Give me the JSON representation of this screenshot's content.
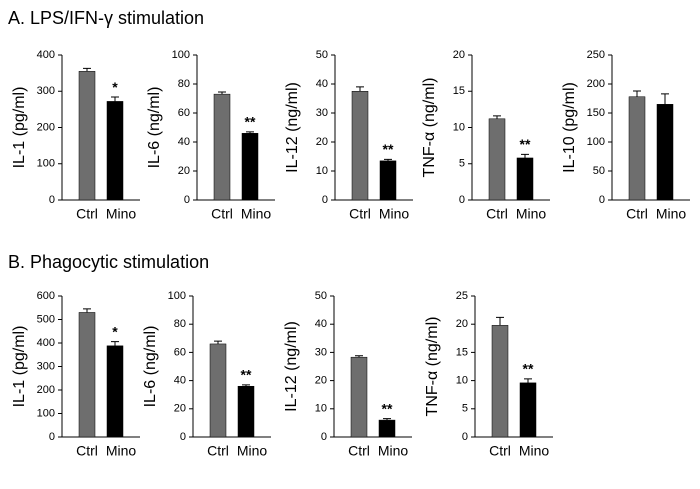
{
  "sections": [
    {
      "title": "A. LPS/IFN-γ stimulation"
    },
    {
      "title": "B. Phagocytic stimulation"
    }
  ],
  "chart_data": [
    {
      "type": "bar",
      "ylabel": "IL-1 (pg/ml)",
      "categories": [
        "Ctrl",
        "Mino"
      ],
      "values": [
        355,
        272
      ],
      "errors": [
        8,
        12
      ],
      "annotations": [
        null,
        "*"
      ],
      "colors": [
        "#6e6e6e",
        "#000000"
      ],
      "ylim": [
        0,
        400
      ],
      "yticks": [
        0,
        100,
        200,
        300,
        400
      ]
    },
    {
      "type": "bar",
      "ylabel": "IL-6 (ng/ml)",
      "categories": [
        "Ctrl",
        "Mino"
      ],
      "values": [
        73,
        46
      ],
      "errors": [
        1.5,
        1
      ],
      "annotations": [
        null,
        "**"
      ],
      "colors": [
        "#6e6e6e",
        "#000000"
      ],
      "ylim": [
        0,
        100
      ],
      "yticks": [
        0,
        20,
        40,
        60,
        80,
        100
      ]
    },
    {
      "type": "bar",
      "ylabel": "IL-12 (ng/ml)",
      "categories": [
        "Ctrl",
        "Mino"
      ],
      "values": [
        37.5,
        13.5
      ],
      "errors": [
        1.5,
        0.5
      ],
      "annotations": [
        null,
        "**"
      ],
      "colors": [
        "#6e6e6e",
        "#000000"
      ],
      "ylim": [
        0,
        50
      ],
      "yticks": [
        0,
        10,
        20,
        30,
        40,
        50
      ]
    },
    {
      "type": "bar",
      "ylabel": "TNF-α (ng/ml)",
      "categories": [
        "Ctrl",
        "Mino"
      ],
      "values": [
        11.2,
        5.8
      ],
      "errors": [
        0.4,
        0.5
      ],
      "annotations": [
        null,
        "**"
      ],
      "colors": [
        "#6e6e6e",
        "#000000"
      ],
      "ylim": [
        0,
        20
      ],
      "yticks": [
        0,
        5,
        10,
        15,
        20
      ]
    },
    {
      "type": "bar",
      "ylabel": "IL-10 (pg/ml)",
      "categories": [
        "Ctrl",
        "Mino"
      ],
      "values": [
        178,
        165
      ],
      "errors": [
        10,
        18
      ],
      "colors": [
        "#6e6e6e",
        "#000000"
      ],
      "ylim": [
        0,
        250
      ],
      "yticks": [
        0,
        50,
        100,
        150,
        200,
        250
      ]
    },
    {
      "type": "bar",
      "ylabel": "IL-1 (pg/ml)",
      "categories": [
        "Ctrl",
        "Mino"
      ],
      "values": [
        530,
        388
      ],
      "errors": [
        15,
        18
      ],
      "annotations": [
        null,
        "*"
      ],
      "colors": [
        "#6e6e6e",
        "#000000"
      ],
      "ylim": [
        0,
        600
      ],
      "yticks": [
        0,
        100,
        200,
        300,
        400,
        500,
        600
      ]
    },
    {
      "type": "bar",
      "ylabel": "IL-6 (ng/ml)",
      "categories": [
        "Ctrl",
        "Mino"
      ],
      "values": [
        66,
        36
      ],
      "errors": [
        2,
        1
      ],
      "annotations": [
        null,
        "**"
      ],
      "colors": [
        "#6e6e6e",
        "#000000"
      ],
      "ylim": [
        0,
        100
      ],
      "yticks": [
        0,
        20,
        40,
        60,
        80,
        100
      ]
    },
    {
      "type": "bar",
      "ylabel": "IL-12 (ng/ml)",
      "categories": [
        "Ctrl",
        "Mino"
      ],
      "values": [
        28.3,
        6
      ],
      "errors": [
        0.5,
        0.5
      ],
      "annotations": [
        null,
        "**"
      ],
      "colors": [
        "#6e6e6e",
        "#000000"
      ],
      "ylim": [
        0,
        50
      ],
      "yticks": [
        0,
        10,
        20,
        30,
        40,
        50
      ]
    },
    {
      "type": "bar",
      "ylabel": "TNF-α (ng/ml)",
      "categories": [
        "Ctrl",
        "Mino"
      ],
      "values": [
        19.8,
        9.6
      ],
      "errors": [
        1.4,
        0.7
      ],
      "annotations": [
        null,
        "**"
      ],
      "colors": [
        "#6e6e6e",
        "#000000"
      ],
      "ylim": [
        0,
        25
      ],
      "yticks": [
        0,
        5,
        10,
        15,
        20,
        25
      ]
    }
  ]
}
